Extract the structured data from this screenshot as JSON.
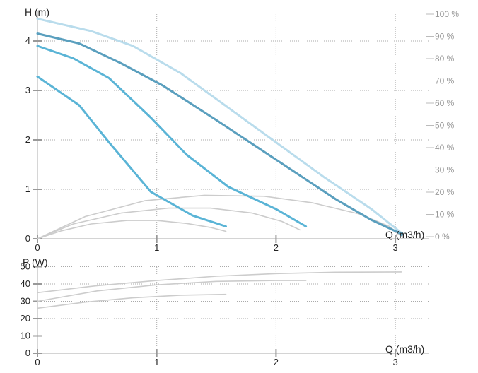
{
  "chart_data": [
    {
      "type": "line",
      "title": "",
      "ylabel": "H (m)",
      "xlabel": "Q (m3/h)",
      "xlim": [
        0,
        3.3
      ],
      "ylim": [
        0,
        4.5
      ],
      "x_ticks": [
        0,
        1,
        2,
        3
      ],
      "y_ticks": [
        0,
        1,
        2,
        3,
        4
      ],
      "grid": true,
      "secondary_axis": {
        "label_ticks": [
          "0 %",
          "10 %",
          "20 %",
          "30 %",
          "40 %",
          "50 %",
          "60 %",
          "70 %",
          "80 %",
          "90 %",
          "100 %"
        ],
        "range": [
          0,
          100
        ]
      },
      "series": [
        {
          "role": "pump-curve",
          "color": "#5ab4d6",
          "x": [
            0,
            0.35,
            0.6,
            0.95,
            1.3,
            1.58
          ],
          "y": [
            3.28,
            2.7,
            1.95,
            0.95,
            0.47,
            0.25
          ]
        },
        {
          "role": "pump-curve",
          "color": "#5ab4d6",
          "x": [
            0,
            0.3,
            0.6,
            0.95,
            1.25,
            1.6,
            2.0,
            2.25
          ],
          "y": [
            3.9,
            3.65,
            3.25,
            2.45,
            1.7,
            1.05,
            0.6,
            0.25
          ]
        },
        {
          "role": "pump-curve",
          "color": "#5a9fbe",
          "x": [
            0,
            0.35,
            0.7,
            1.05,
            1.5,
            2.0,
            2.5,
            2.8,
            3.05
          ],
          "y": [
            4.15,
            3.95,
            3.55,
            3.1,
            2.4,
            1.6,
            0.8,
            0.38,
            0.1
          ]
        },
        {
          "role": "max-curve",
          "color": "#b9dcec",
          "x": [
            0,
            0.45,
            0.8,
            1.2,
            1.6,
            2.0,
            2.4,
            2.8,
            3.05
          ],
          "y": [
            4.45,
            4.2,
            3.9,
            3.35,
            2.65,
            1.95,
            1.25,
            0.6,
            0.12
          ]
        },
        {
          "role": "efficiency",
          "color": "#cccccc",
          "x": [
            0,
            0.2,
            0.45,
            0.75,
            1.0,
            1.25,
            1.45,
            1.58
          ],
          "y": [
            0,
            0.16,
            0.3,
            0.37,
            0.37,
            0.31,
            0.23,
            0.15
          ]
        },
        {
          "role": "efficiency",
          "color": "#cccccc",
          "x": [
            0,
            0.3,
            0.7,
            1.1,
            1.45,
            1.8,
            2.05,
            2.2
          ],
          "y": [
            0,
            0.3,
            0.52,
            0.62,
            0.62,
            0.52,
            0.35,
            0.18
          ]
        },
        {
          "role": "efficiency",
          "color": "#cccccc",
          "x": [
            0,
            0.4,
            0.9,
            1.4,
            1.9,
            2.3,
            2.7,
            2.95,
            3.05
          ],
          "y": [
            0,
            0.45,
            0.77,
            0.88,
            0.86,
            0.73,
            0.5,
            0.25,
            0.05
          ]
        }
      ]
    },
    {
      "type": "line",
      "title": "",
      "ylabel": "P (W)",
      "xlabel": "Q (m3/h)",
      "xlim": [
        0,
        3.3
      ],
      "ylim": [
        0,
        50
      ],
      "x_ticks": [
        0,
        1,
        2,
        3
      ],
      "y_ticks": [
        0,
        10,
        20,
        30,
        40,
        50
      ],
      "grid": true,
      "series": [
        {
          "role": "power",
          "color": "#cccccc",
          "x": [
            0,
            0.4,
            0.8,
            1.2,
            1.58
          ],
          "y": [
            26,
            29.5,
            32,
            33.5,
            34
          ]
        },
        {
          "role": "power",
          "color": "#cccccc",
          "x": [
            0,
            0.5,
            1.0,
            1.5,
            2.0,
            2.25
          ],
          "y": [
            30,
            36,
            39.5,
            41.5,
            42,
            42
          ]
        },
        {
          "role": "power",
          "color": "#cccccc",
          "x": [
            0,
            0.5,
            1.0,
            1.5,
            2.0,
            2.5,
            3.05
          ],
          "y": [
            35,
            39,
            42,
            44.5,
            46,
            46.8,
            47
          ]
        }
      ]
    }
  ]
}
